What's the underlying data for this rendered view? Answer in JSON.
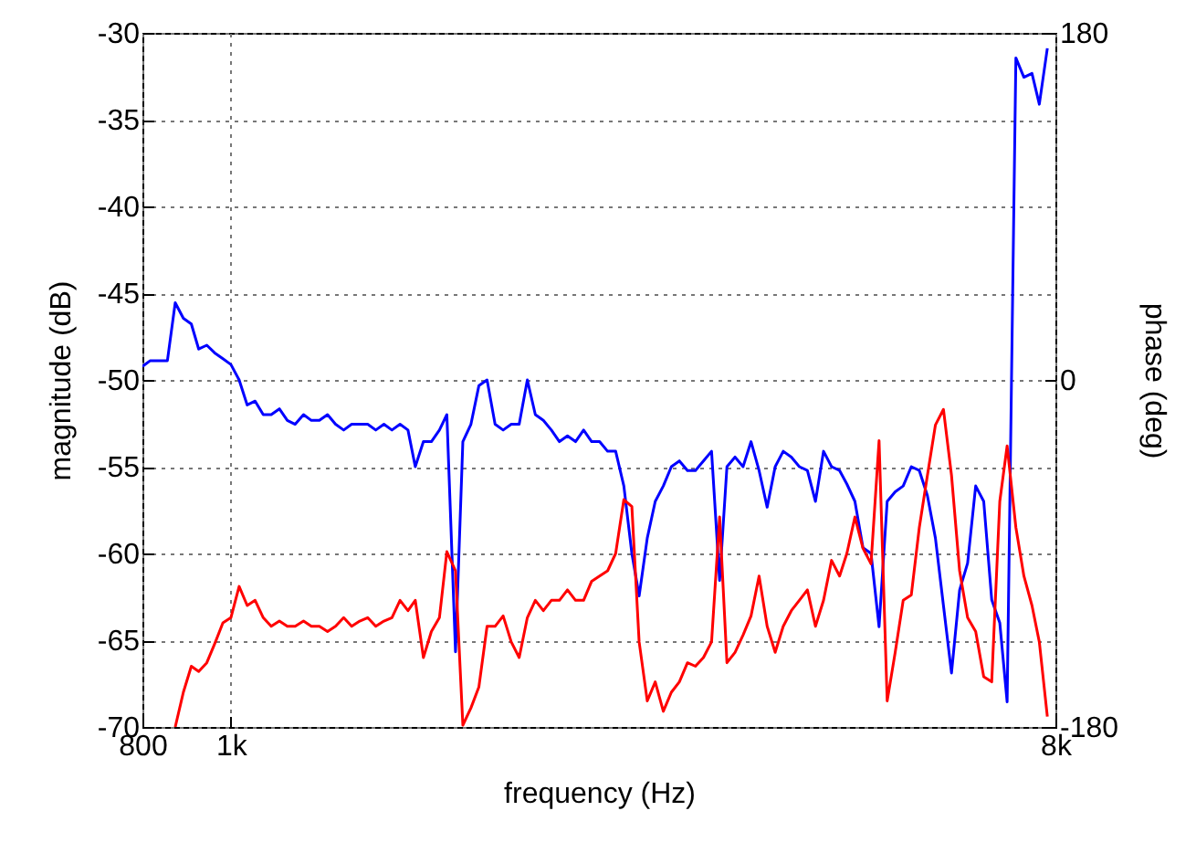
{
  "chart_data": {
    "type": "line",
    "xlabel": "frequency (Hz)",
    "ylabel": "magnitude (dB)",
    "y2label": "phase (deg)",
    "log": "x",
    "grid": true,
    "xlim": [
      800,
      8000
    ],
    "xticks": [
      800,
      {
        "value": 1000,
        "label": "1k"
      },
      {
        "value": 8000,
        "label": "8k"
      }
    ],
    "ylim": [
      -70,
      -30
    ],
    "yticks": [
      -70,
      -65,
      -60,
      -55,
      -50,
      -45,
      -40,
      -35,
      -30
    ],
    "y2lim": [
      -180,
      180
    ],
    "y2ticks": [
      -180,
      0,
      180
    ],
    "series": [
      {
        "color": "#0000ff",
        "axis": "y2",
        "x": [
          800,
          816,
          833,
          852,
          869,
          887,
          905,
          922,
          941,
          960,
          980,
          1000,
          1021,
          1042,
          1063,
          1085,
          1107,
          1130,
          1153,
          1176,
          1201,
          1225,
          1250,
          1276,
          1302,
          1329,
          1356,
          1384,
          1412,
          1441,
          1471,
          1501,
          1532,
          1563,
          1592,
          1625,
          1658,
          1692,
          1724,
          1762,
          1795,
          1832,
          1869,
          1908,
          1947,
          1987,
          2028,
          2069,
          2112,
          2155,
          2199,
          2244,
          2290,
          2337,
          2385,
          2434,
          2484,
          2534,
          2586,
          2639,
          2694,
          2749,
          2800,
          2858,
          2916,
          2976,
          3037,
          3099,
          3163,
          3227,
          3293,
          3361,
          3430,
          3494,
          3566,
          3639,
          3713,
          3789,
          3867,
          3946,
          4027,
          4110,
          4194,
          4280,
          4368,
          4458,
          4549,
          4642,
          4728,
          4825,
          4924,
          5025,
          5128,
          5234,
          5341,
          5450,
          5562,
          5676,
          5793,
          5911,
          6032,
          6156,
          6283,
          6411,
          6543,
          6677,
          6813,
          6953,
          7083,
          7241,
          7389,
          7541,
          7682,
          7839
        ],
        "values": [
          7,
          10,
          10,
          10,
          40,
          32,
          29,
          16,
          18,
          14,
          11,
          8,
          0,
          -13,
          -11,
          -18,
          -18,
          -15,
          -21,
          -23,
          -18,
          -21,
          -21,
          -18,
          -23,
          -26,
          -23,
          -23,
          -23,
          -26,
          -23,
          -26,
          -23,
          -26,
          -45,
          -32,
          -32,
          -26,
          -18,
          -141,
          -32,
          -23,
          -3,
          0,
          -23,
          -26,
          -23,
          -23,
          0,
          -18,
          -21,
          -26,
          -32,
          -29,
          -32,
          -26,
          -32,
          -32,
          -37,
          -37,
          -55,
          -90,
          -112,
          -82,
          -63,
          -55,
          -45,
          -42,
          -47,
          -47,
          -42,
          -37,
          -104,
          -45,
          -40,
          -45,
          -32,
          -47,
          -66,
          -45,
          -37,
          -40,
          -45,
          -47,
          -63,
          -37,
          -45,
          -47,
          -54,
          -63,
          -87,
          -90,
          -128,
          -63,
          -58,
          -55,
          -45,
          -47,
          -60,
          -82,
          -117,
          -152,
          -109,
          -95,
          -55,
          -63,
          -114,
          -126,
          -167,
          167,
          157,
          159,
          143,
          172
        ]
      },
      {
        "color": "#ff0000",
        "x": [
          869,
          887,
          905,
          922,
          941,
          960,
          980,
          1000,
          1021,
          1042,
          1063,
          1085,
          1107,
          1130,
          1153,
          1176,
          1201,
          1225,
          1250,
          1276,
          1302,
          1329,
          1356,
          1384,
          1412,
          1441,
          1471,
          1501,
          1532,
          1563,
          1592,
          1625,
          1658,
          1692,
          1724,
          1762,
          1795,
          1832,
          1869,
          1908,
          1947,
          1987,
          2028,
          2069,
          2112,
          2155,
          2199,
          2244,
          2290,
          2337,
          2385,
          2434,
          2484,
          2534,
          2586,
          2639,
          2694,
          2749,
          2800,
          2858,
          2916,
          2976,
          3037,
          3099,
          3163,
          3227,
          3293,
          3361,
          3430,
          3494,
          3566,
          3639,
          3713,
          3789,
          3867,
          3946,
          4027,
          4110,
          4194,
          4280,
          4368,
          4458,
          4549,
          4642,
          4728,
          4825,
          4924,
          5025,
          5128,
          5234,
          5341,
          5450,
          5562,
          5676,
          5793,
          5911,
          6032,
          6156,
          6283,
          6411,
          6543,
          6677,
          6813,
          6953,
          7083,
          7241,
          7389,
          7541,
          7682,
          7839
        ],
        "values": [
          -70,
          -68,
          -66.5,
          -66.8,
          -66.3,
          -65.2,
          -64,
          -63.7,
          -61.9,
          -63,
          -62.7,
          -63.7,
          -64.2,
          -63.9,
          -64.2,
          -64.2,
          -63.9,
          -64.2,
          -64.2,
          -64.5,
          -64.2,
          -63.7,
          -64.2,
          -63.9,
          -63.7,
          -64.2,
          -63.9,
          -63.7,
          -62.7,
          -63.3,
          -62.7,
          -66,
          -64.5,
          -63.7,
          -59.9,
          -61,
          -69.9,
          -68.9,
          -67.7,
          -64.2,
          -64.2,
          -63.6,
          -65.1,
          -66,
          -63.7,
          -62.7,
          -63.3,
          -62.7,
          -62.7,
          -62.1,
          -62.7,
          -62.7,
          -61.6,
          -61.3,
          -61,
          -60,
          -56.9,
          -57.3,
          -65.1,
          -68.5,
          -67.4,
          -69.1,
          -68,
          -67.4,
          -66.3,
          -66.5,
          -66,
          -65.1,
          -57.9,
          -66.3,
          -65.7,
          -64.7,
          -63.6,
          -61.3,
          -64.2,
          -65.7,
          -64.2,
          -63.3,
          -62.7,
          -62.1,
          -64.2,
          -62.7,
          -60.4,
          -61.3,
          -60,
          -57.9,
          -59.7,
          -60.6,
          -53.5,
          -68.5,
          -65.7,
          -62.7,
          -62.4,
          -58.5,
          -55.5,
          -52.6,
          -51.7,
          -55.5,
          -61,
          -63.7,
          -64.5,
          -67.1,
          -67.4,
          -57,
          -53.8,
          -58.5,
          -61.3,
          -63,
          -65.1,
          -69.4
        ]
      }
    ]
  }
}
